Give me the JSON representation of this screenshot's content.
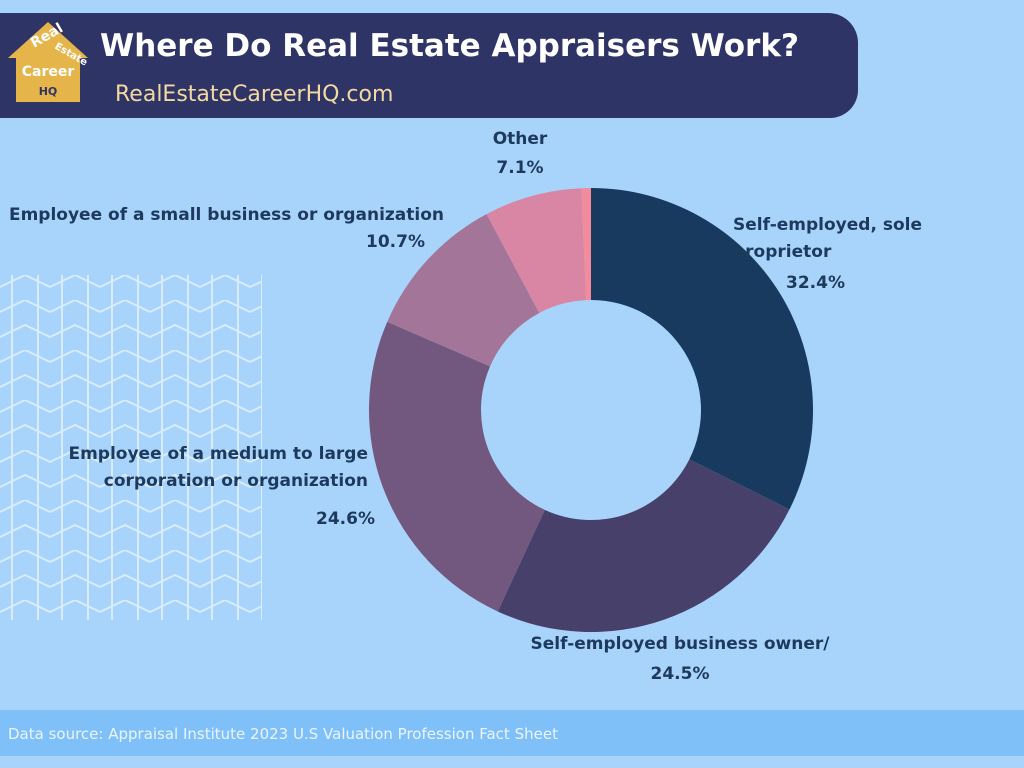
{
  "logo": [
    "Real",
    "Estate",
    "Career",
    "HQ"
  ],
  "chart_data": {
    "type": "donut",
    "title": "Where Do Real Estate Appraisers Work?",
    "subtitle": "RealEstateCareerHQ.com",
    "source": "Data source: Appraisal Institute 2023 U.S Valuation Profession Fact Sheet",
    "categories": [
      "Self-employed, sole proprietor",
      "Self-employed business owner/",
      "Employee of a medium to large corporation or organization",
      "Employee of a small business or organization",
      "Other",
      null
    ],
    "values": [
      32.4,
      24.5,
      24.6,
      10.7,
      7.1,
      0.7
    ],
    "value_labels": [
      "32.4%",
      "24.5%",
      "24.6%",
      "10.7%",
      "7.1%",
      null
    ],
    "colors": [
      "#173a5e",
      "#47406a",
      "#72577f",
      "#a37598",
      "#d886a4",
      "#f28b9b"
    ]
  }
}
